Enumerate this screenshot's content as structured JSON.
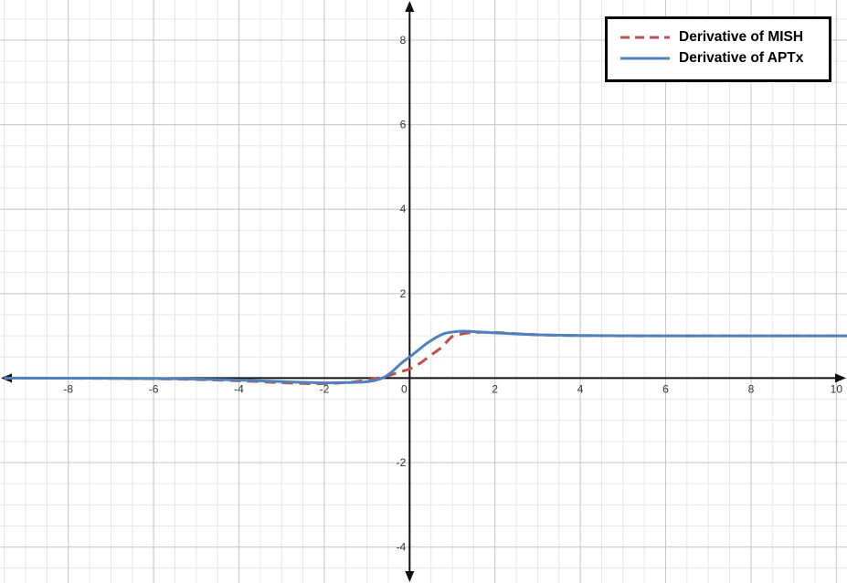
{
  "chart_data": {
    "type": "line",
    "title": "",
    "xlabel": "",
    "ylabel": "",
    "xlim": [
      -9.6,
      10.25
    ],
    "ylim": [
      -4.85,
      8.95
    ],
    "grid": true,
    "legend_position": "top-right",
    "x_ticks": [
      -8,
      -6,
      -4,
      -2,
      0,
      2,
      4,
      6,
      8,
      10
    ],
    "y_ticks": [
      -4,
      -2,
      2,
      4,
      6,
      8
    ],
    "x_tick_labels": [
      "-8",
      "-6",
      "-4",
      "-2",
      "0",
      "2",
      "4",
      "6",
      "8",
      "10"
    ],
    "y_tick_labels": [
      "-4",
      "-2",
      "2",
      "4",
      "6",
      "8"
    ],
    "series": [
      {
        "name": "Derivative of MISH",
        "color": "#c0504d",
        "style": "dashed",
        "x": [
          -9.5,
          -8,
          -7,
          -6,
          -5,
          -4,
          -3,
          -2.5,
          -2,
          -1.5,
          -1.2,
          -1,
          -0.8,
          -0.5,
          -0.25,
          0,
          0.25,
          0.5,
          0.75,
          1,
          1.25,
          1.5,
          2,
          2.5,
          3,
          3.5,
          4,
          5,
          6,
          7,
          8,
          9,
          10,
          10.25
        ],
        "y": [
          -0.001,
          -0.003,
          -0.007,
          -0.015,
          -0.033,
          -0.063,
          -0.11,
          -0.127,
          -0.131,
          -0.107,
          -0.074,
          -0.046,
          -0.012,
          0.056,
          0.14,
          0.216,
          0.355,
          0.545,
          0.73,
          0.985,
          1.05,
          1.08,
          1.08,
          1.05,
          1.026,
          1.011,
          1.006,
          1.0,
          1.0,
          1.0,
          1.0,
          1.0,
          1.0,
          1.0
        ]
      },
      {
        "name": "Derivative of APTx",
        "color": "#4f81bd",
        "style": "solid",
        "x": [
          -9.5,
          -8,
          -6,
          -5,
          -4,
          -3,
          -2.5,
          -2,
          -1.5,
          -1.2,
          -1,
          -0.8,
          -0.6,
          -0.4,
          -0.2,
          0,
          0.2,
          0.4,
          0.6,
          0.8,
          1,
          1.25,
          1.5,
          2,
          2.5,
          3,
          4,
          5,
          6,
          7,
          8,
          9,
          10,
          10.25
        ],
        "y": [
          0.0,
          -0.002,
          -0.011,
          -0.024,
          -0.047,
          -0.082,
          -0.1,
          -0.112,
          -0.105,
          -0.1,
          -0.085,
          -0.05,
          0.02,
          0.16,
          0.35,
          0.5,
          0.66,
          0.82,
          0.95,
          1.05,
          1.09,
          1.11,
          1.1,
          1.07,
          1.045,
          1.025,
          1.008,
          1.002,
          1.0,
          1.0,
          1.0,
          1.0,
          1.0,
          1.0
        ]
      }
    ]
  }
}
